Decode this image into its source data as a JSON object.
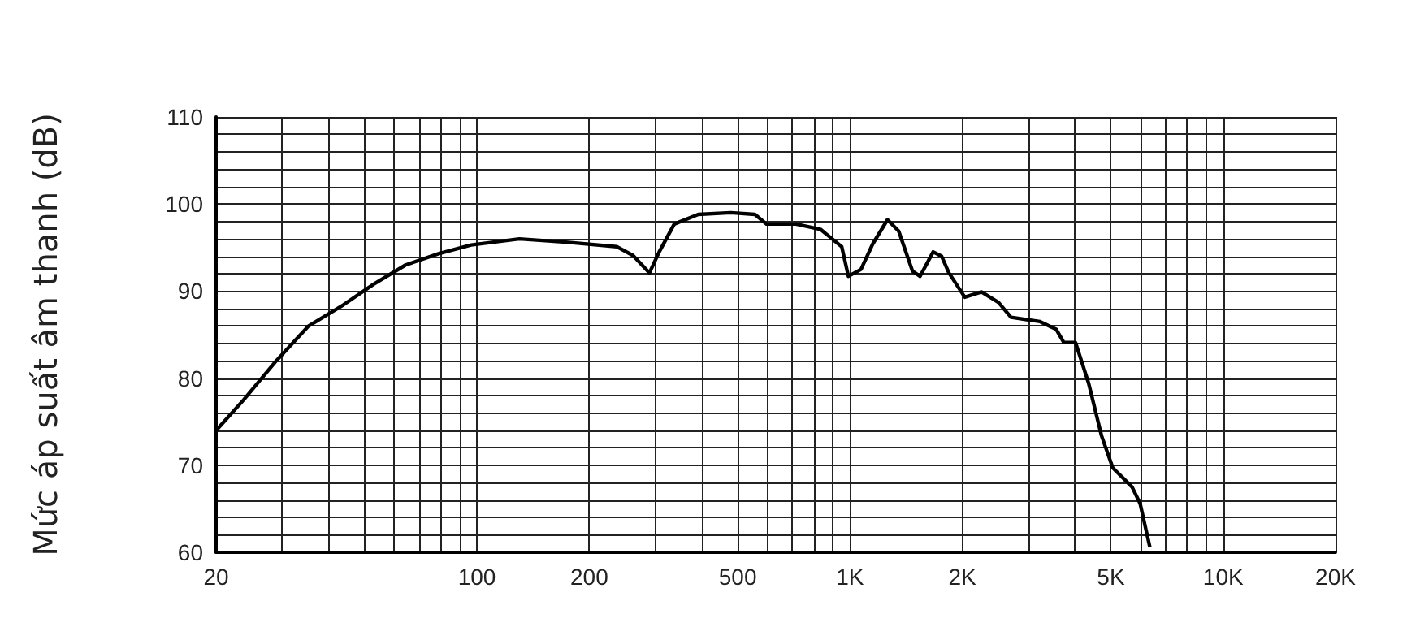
{
  "chart_data": {
    "type": "line",
    "ylabel": "Mức áp suất âm thanh (dB)",
    "log": "x",
    "grid": true,
    "marker": "none",
    "line_style": "solid",
    "xlim": [
      20,
      20000
    ],
    "ylim": [
      60,
      110
    ],
    "xticks": [
      {
        "value": 20,
        "label": "20"
      },
      {
        "value": 30,
        "label": null
      },
      {
        "value": 40,
        "label": null
      },
      {
        "value": 50,
        "label": null
      },
      {
        "value": 60,
        "label": null
      },
      {
        "value": 70,
        "label": null
      },
      {
        "value": 80,
        "label": null
      },
      {
        "value": 90,
        "label": null
      },
      {
        "value": 100,
        "label": "100"
      },
      {
        "value": 200,
        "label": "200"
      },
      {
        "value": 300,
        "label": null
      },
      {
        "value": 400,
        "label": null
      },
      {
        "value": 500,
        "label": "500"
      },
      {
        "value": 600,
        "label": null
      },
      {
        "value": 700,
        "label": null
      },
      {
        "value": 800,
        "label": null
      },
      {
        "value": 900,
        "label": null
      },
      {
        "value": 1000,
        "label": "1K"
      },
      {
        "value": 2000,
        "label": "2K"
      },
      {
        "value": 3000,
        "label": null
      },
      {
        "value": 4000,
        "label": null
      },
      {
        "value": 5000,
        "label": "5K"
      },
      {
        "value": 6000,
        "label": null
      },
      {
        "value": 7000,
        "label": null
      },
      {
        "value": 8000,
        "label": null
      },
      {
        "value": 9000,
        "label": null
      },
      {
        "value": 10000,
        "label": "10K"
      },
      {
        "value": 20000,
        "label": "20K"
      }
    ],
    "yticks": [
      60,
      {
        "value": 62,
        "label": null
      },
      {
        "value": 64,
        "label": null
      },
      {
        "value": 66,
        "label": null
      },
      {
        "value": 68,
        "label": null
      },
      70,
      {
        "value": 72,
        "label": null
      },
      {
        "value": 74,
        "label": null
      },
      {
        "value": 76,
        "label": null
      },
      {
        "value": 78,
        "label": null
      },
      80,
      {
        "value": 82,
        "label": null
      },
      {
        "value": 84,
        "label": null
      },
      {
        "value": 86,
        "label": null
      },
      {
        "value": 88,
        "label": null
      },
      90,
      {
        "value": 92,
        "label": null
      },
      {
        "value": 94,
        "label": null
      },
      {
        "value": 96,
        "label": null
      },
      {
        "value": 98,
        "label": null
      },
      100,
      {
        "value": 102,
        "label": null
      },
      {
        "value": 104,
        "label": null
      },
      {
        "value": 106,
        "label": null
      },
      {
        "value": 108,
        "label": null
      },
      110
    ],
    "series": [
      {
        "color": "#000000",
        "x": [
          20,
          23.7,
          29,
          35.4,
          43.8,
          52.9,
          64.4,
          78.9,
          96.5,
          130,
          176,
          237,
          262,
          290,
          308,
          338,
          392,
          479,
          556,
          597,
          716,
          833,
          950,
          990,
          1070,
          1150,
          1260,
          1350,
          1470,
          1540,
          1670,
          1760,
          1840,
          2030,
          2250,
          2500,
          2700,
          3230,
          3570,
          3740,
          4020,
          4360,
          4720,
          5060,
          5700,
          5990,
          6360
        ],
        "values": [
          74,
          77.5,
          82,
          86,
          88.4,
          90.8,
          93,
          94.3,
          95.3,
          96,
          95.6,
          95.1,
          94.1,
          92.1,
          94.5,
          97.7,
          98.8,
          99,
          98.8,
          97.7,
          97.7,
          97.1,
          95.1,
          91.7,
          92.5,
          95.4,
          98.2,
          96.9,
          92.3,
          91.7,
          94.5,
          94,
          92.1,
          89.3,
          89.9,
          88.7,
          87,
          86.5,
          85.6,
          84.1,
          84.1,
          79.4,
          73.4,
          69.7,
          67.5,
          65.6,
          60.6
        ]
      }
    ]
  }
}
